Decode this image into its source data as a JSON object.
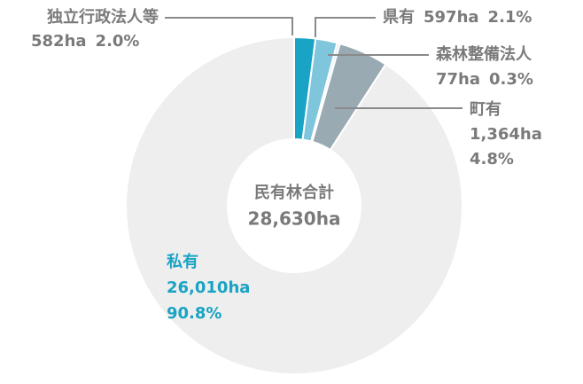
{
  "chart_data": {
    "type": "donut",
    "center_title": "民有林合計",
    "total": 28630,
    "total_label": "28,630ha",
    "categories": [
      "独立行政法人等",
      "県有",
      "森林整備法人",
      "町有",
      "私有"
    ],
    "values": [
      582,
      597,
      77,
      1364,
      26010
    ],
    "value_labels": [
      "582ha",
      "597ha",
      "77ha",
      "1,364ha",
      "26,010ha"
    ],
    "percents": [
      2,
      2.1,
      0.3,
      4.8,
      90.8
    ],
    "percent_labels": [
      "2.0%",
      "2.1%",
      "0.3%",
      "4.8%",
      "90.8%"
    ],
    "colors": [
      "#19a3c4",
      "#7fc6dd",
      "#dfe6ea",
      "#9aaab3",
      "#eeeeee"
    ],
    "highlight_color": "#19a3c4"
  }
}
